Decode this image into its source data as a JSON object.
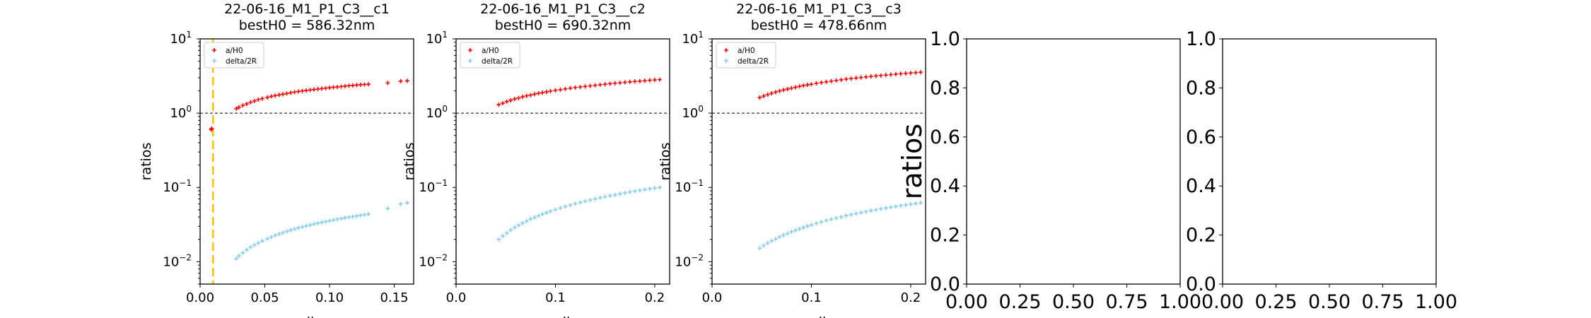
{
  "colors": {
    "a_over_h0": "#ff0000",
    "delta_over_2r": "#87ceeb",
    "vline": "#ffc000"
  },
  "chart_data": [
    {
      "type": "scatter",
      "title_line1": "22-06-16_M1_P1_C3__c1",
      "title_line2": "bestH0 = 586.32nm",
      "xlabel": "epsilon",
      "ylabel": "ratios",
      "yscale": "log",
      "xlim": [
        0,
        0.165
      ],
      "ylim": [
        0.005,
        10
      ],
      "xticks": [
        0,
        0.05,
        0.1,
        0.15
      ],
      "xtick_labels": [
        "0.00",
        "0.05",
        "0.10",
        "0.15"
      ],
      "ytick_labels": [
        "10^-2",
        "10^-1",
        "10^0",
        "10^1"
      ],
      "hline": 1,
      "vline": 0.01,
      "legend": [
        "a/H0",
        "delta/2R"
      ],
      "series": [
        {
          "name": "a/H0",
          "x": [
            0.0085,
            0.009,
            0.028,
            0.03,
            0.033,
            0.036,
            0.039,
            0.042,
            0.045,
            0.048,
            0.052,
            0.055,
            0.058,
            0.061,
            0.064,
            0.067,
            0.07,
            0.073,
            0.076,
            0.079,
            0.082,
            0.085,
            0.088,
            0.091,
            0.094,
            0.097,
            0.1,
            0.103,
            0.106,
            0.109,
            0.112,
            0.115,
            0.118,
            0.121,
            0.124,
            0.127,
            0.13,
            0.145,
            0.155,
            0.16
          ],
          "y": [
            0.6,
            0.62,
            1.15,
            1.2,
            1.27,
            1.33,
            1.4,
            1.46,
            1.52,
            1.57,
            1.63,
            1.68,
            1.72,
            1.76,
            1.8,
            1.84,
            1.88,
            1.92,
            1.96,
            1.99,
            2.02,
            2.05,
            2.08,
            2.11,
            2.14,
            2.17,
            2.2,
            2.23,
            2.25,
            2.28,
            2.31,
            2.34,
            2.36,
            2.39,
            2.41,
            2.43,
            2.45,
            2.55,
            2.7,
            2.72
          ]
        },
        {
          "name": "delta/2R",
          "x": [
            0.028,
            0.03,
            0.033,
            0.036,
            0.039,
            0.042,
            0.045,
            0.048,
            0.052,
            0.055,
            0.058,
            0.061,
            0.064,
            0.067,
            0.07,
            0.073,
            0.076,
            0.079,
            0.082,
            0.085,
            0.088,
            0.091,
            0.094,
            0.097,
            0.1,
            0.103,
            0.106,
            0.109,
            0.112,
            0.115,
            0.118,
            0.121,
            0.124,
            0.127,
            0.13,
            0.145,
            0.155,
            0.16
          ],
          "y": [
            0.011,
            0.012,
            0.0132,
            0.0145,
            0.0157,
            0.0168,
            0.0179,
            0.019,
            0.0204,
            0.0215,
            0.0226,
            0.0236,
            0.0246,
            0.0256,
            0.0266,
            0.0276,
            0.0285,
            0.0294,
            0.0303,
            0.0312,
            0.0321,
            0.033,
            0.0339,
            0.0347,
            0.0356,
            0.0364,
            0.0372,
            0.0381,
            0.0389,
            0.0397,
            0.0405,
            0.0413,
            0.0421,
            0.0429,
            0.0437,
            0.052,
            0.06,
            0.062
          ]
        }
      ]
    },
    {
      "type": "scatter",
      "title_line1": "22-06-16_M1_P1_C3__c2",
      "title_line2": "bestH0 = 690.32nm",
      "xlabel": "epsilon",
      "ylabel": "ratios",
      "yscale": "log",
      "xlim": [
        0,
        0.215
      ],
      "ylim": [
        0.005,
        10
      ],
      "xticks": [
        0,
        0.1,
        0.2
      ],
      "xtick_labels": [
        "0.0",
        "0.1",
        "0.2"
      ],
      "ytick_labels": [
        "10^-2",
        "10^-1",
        "10^0",
        "10^1"
      ],
      "hline": 1,
      "legend": [
        "a/H0",
        "delta/2R"
      ],
      "series": [
        {
          "name": "a/H0",
          "x": [
            0.043,
            0.047,
            0.051,
            0.055,
            0.059,
            0.063,
            0.067,
            0.071,
            0.075,
            0.079,
            0.083,
            0.087,
            0.091,
            0.095,
            0.1,
            0.105,
            0.11,
            0.115,
            0.12,
            0.125,
            0.13,
            0.135,
            0.14,
            0.145,
            0.15,
            0.155,
            0.16,
            0.165,
            0.17,
            0.175,
            0.18,
            0.185,
            0.19,
            0.195,
            0.2,
            0.205
          ],
          "y": [
            1.3,
            1.36,
            1.43,
            1.49,
            1.55,
            1.6,
            1.66,
            1.71,
            1.75,
            1.8,
            1.85,
            1.89,
            1.93,
            1.98,
            2.03,
            2.07,
            2.12,
            2.17,
            2.21,
            2.25,
            2.29,
            2.33,
            2.37,
            2.41,
            2.45,
            2.49,
            2.53,
            2.56,
            2.6,
            2.64,
            2.67,
            2.7,
            2.73,
            2.77,
            2.8,
            2.83
          ]
        },
        {
          "name": "delta/2R",
          "x": [
            0.043,
            0.047,
            0.051,
            0.055,
            0.059,
            0.063,
            0.067,
            0.071,
            0.075,
            0.079,
            0.083,
            0.087,
            0.091,
            0.095,
            0.1,
            0.105,
            0.11,
            0.115,
            0.12,
            0.125,
            0.13,
            0.135,
            0.14,
            0.145,
            0.15,
            0.155,
            0.16,
            0.165,
            0.17,
            0.175,
            0.18,
            0.185,
            0.19,
            0.195,
            0.2,
            0.205
          ],
          "y": [
            0.02,
            0.0222,
            0.0244,
            0.0267,
            0.0289,
            0.031,
            0.0332,
            0.0353,
            0.0374,
            0.0395,
            0.0416,
            0.0437,
            0.0457,
            0.0478,
            0.0503,
            0.0528,
            0.0553,
            0.0578,
            0.0603,
            0.0628,
            0.0652,
            0.0676,
            0.07,
            0.0724,
            0.0748,
            0.0772,
            0.0796,
            0.082,
            0.0843,
            0.0866,
            0.0889,
            0.0912,
            0.0935,
            0.0958,
            0.098,
            0.1
          ]
        }
      ]
    },
    {
      "type": "scatter",
      "title_line1": "22-06-16_M1_P1_C3__c3",
      "title_line2": "bestH0 = 478.66nm",
      "xlabel": "epsilon",
      "ylabel": "ratios",
      "yscale": "log",
      "xlim": [
        0,
        0.215
      ],
      "ylim": [
        0.005,
        10
      ],
      "xticks": [
        0,
        0.1,
        0.2
      ],
      "xtick_labels": [
        "0.0",
        "0.1",
        "0.2"
      ],
      "ytick_labels": [
        "10^-2",
        "10^-1",
        "10^0",
        "10^1"
      ],
      "hline": 1,
      "legend": [
        "a/H0",
        "delta/2R"
      ],
      "series": [
        {
          "name": "a/H0",
          "x": [
            0.048,
            0.052,
            0.056,
            0.06,
            0.064,
            0.068,
            0.072,
            0.076,
            0.08,
            0.084,
            0.088,
            0.092,
            0.096,
            0.1,
            0.105,
            0.11,
            0.115,
            0.12,
            0.125,
            0.13,
            0.135,
            0.14,
            0.145,
            0.15,
            0.155,
            0.16,
            0.165,
            0.17,
            0.175,
            0.18,
            0.185,
            0.19,
            0.195,
            0.2,
            0.205,
            0.21
          ],
          "y": [
            1.62,
            1.7,
            1.78,
            1.85,
            1.92,
            1.99,
            2.05,
            2.11,
            2.17,
            2.23,
            2.29,
            2.35,
            2.4,
            2.45,
            2.52,
            2.58,
            2.64,
            2.7,
            2.76,
            2.81,
            2.87,
            2.92,
            2.97,
            3.02,
            3.07,
            3.12,
            3.17,
            3.21,
            3.26,
            3.3,
            3.35,
            3.39,
            3.43,
            3.47,
            3.51,
            3.55
          ]
        },
        {
          "name": "delta/2R",
          "x": [
            0.048,
            0.052,
            0.056,
            0.06,
            0.064,
            0.068,
            0.072,
            0.076,
            0.08,
            0.084,
            0.088,
            0.092,
            0.096,
            0.1,
            0.105,
            0.11,
            0.115,
            0.12,
            0.125,
            0.13,
            0.135,
            0.14,
            0.145,
            0.15,
            0.155,
            0.16,
            0.165,
            0.17,
            0.175,
            0.18,
            0.185,
            0.19,
            0.195,
            0.2,
            0.205,
            0.21
          ],
          "y": [
            0.0152,
            0.0165,
            0.0178,
            0.019,
            0.0203,
            0.0216,
            0.0228,
            0.024,
            0.0253,
            0.0265,
            0.0277,
            0.0289,
            0.0301,
            0.0313,
            0.0328,
            0.0343,
            0.0358,
            0.0372,
            0.0387,
            0.0401,
            0.0416,
            0.043,
            0.0444,
            0.0458,
            0.0472,
            0.0486,
            0.05,
            0.0514,
            0.0527,
            0.0541,
            0.0554,
            0.0568,
            0.0581,
            0.0594,
            0.0607,
            0.062
          ]
        }
      ]
    },
    {
      "type": "scatter",
      "title_line1": "",
      "title_line2": "",
      "xlabel": "",
      "ylabel": "ratios",
      "yscale": "linear",
      "xlim": [
        0,
        1
      ],
      "ylim": [
        0,
        1
      ],
      "xticks": [
        0,
        0.25,
        0.5,
        0.75,
        1
      ],
      "xtick_labels": [
        "0.00",
        "0.25",
        "0.50",
        "0.75",
        "1.00"
      ],
      "yticks": [
        0,
        0.2,
        0.4,
        0.6,
        0.8,
        1
      ],
      "ytick_labels": [
        "0.0",
        "0.2",
        "0.4",
        "0.6",
        "0.8",
        "1.0"
      ],
      "series": []
    },
    {
      "type": "scatter",
      "title_line1": "",
      "title_line2": "",
      "xlabel": "",
      "ylabel": "",
      "yscale": "linear",
      "xlim": [
        0,
        1
      ],
      "ylim": [
        0,
        1
      ],
      "xticks": [
        0,
        0.25,
        0.5,
        0.75,
        1
      ],
      "xtick_labels": [
        "0.00",
        "0.25",
        "0.50",
        "0.75",
        "1.00"
      ],
      "yticks": [
        0,
        0.2,
        0.4,
        0.6,
        0.8,
        1
      ],
      "ytick_labels": [
        "0.0",
        "0.2",
        "0.4",
        "0.6",
        "0.8",
        "1.0"
      ],
      "series": []
    }
  ]
}
